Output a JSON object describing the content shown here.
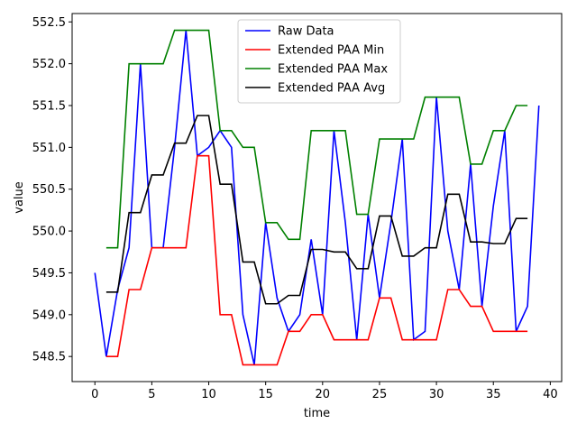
{
  "chart_data": {
    "type": "line",
    "xlabel": "time",
    "ylabel": "value",
    "xlim": [
      -2,
      41
    ],
    "ylim": [
      548.2,
      552.6
    ],
    "xticks": [
      0,
      5,
      10,
      15,
      20,
      25,
      30,
      35,
      40
    ],
    "yticks": [
      548.5,
      549.0,
      549.5,
      550.0,
      550.5,
      551.0,
      551.5,
      552.0,
      552.5
    ],
    "ytick_labels": [
      "548.5",
      "549.0",
      "549.5",
      "550.0",
      "550.5",
      "551.0",
      "551.5",
      "552.0",
      "552.5"
    ],
    "legend_position": "top-center",
    "grid": false,
    "series": [
      {
        "name": "Raw Data",
        "color": "#0000ff",
        "x": [
          0,
          1,
          2,
          3,
          4,
          5,
          6,
          7,
          8,
          9,
          10,
          11,
          12,
          13,
          14,
          15,
          16,
          17,
          18,
          19,
          20,
          21,
          22,
          23,
          24,
          25,
          26,
          27,
          28,
          29,
          30,
          31,
          32,
          33,
          34,
          35,
          36,
          37,
          38,
          39
        ],
        "y": [
          549.5,
          548.5,
          549.3,
          549.8,
          552.0,
          549.8,
          549.8,
          551.0,
          552.4,
          550.9,
          551.0,
          551.2,
          551.0,
          549.0,
          548.4,
          550.1,
          549.2,
          548.8,
          549.0,
          549.9,
          549.0,
          551.2,
          550.1,
          548.7,
          550.2,
          549.2,
          550.1,
          551.1,
          548.7,
          548.8,
          551.6,
          550.0,
          549.3,
          550.8,
          549.1,
          550.3,
          551.2,
          548.8,
          549.1,
          551.5
        ]
      },
      {
        "name": "Extended PAA Min",
        "color": "#ff0000",
        "x": [
          1,
          2,
          3,
          4,
          5,
          6,
          7,
          8,
          9,
          10,
          11,
          12,
          13,
          14,
          15,
          16,
          17,
          18,
          19,
          20,
          21,
          22,
          23,
          24,
          25,
          26,
          27,
          28,
          29,
          30,
          31,
          32,
          33,
          34,
          35,
          36,
          37,
          38
        ],
        "y": [
          548.5,
          548.5,
          549.3,
          549.3,
          549.8,
          549.8,
          549.8,
          549.8,
          550.9,
          550.9,
          549.0,
          549.0,
          548.4,
          548.4,
          548.4,
          548.4,
          548.8,
          548.8,
          549.0,
          549.0,
          548.7,
          548.7,
          548.7,
          548.7,
          549.2,
          549.2,
          548.7,
          548.7,
          548.7,
          548.7,
          549.3,
          549.3,
          549.1,
          549.1,
          548.8,
          548.8,
          548.8,
          548.8
        ]
      },
      {
        "name": "Extended PAA Max",
        "color": "#008000",
        "x": [
          1,
          2,
          3,
          4,
          5,
          6,
          7,
          8,
          9,
          10,
          11,
          12,
          13,
          14,
          15,
          16,
          17,
          18,
          19,
          20,
          21,
          22,
          23,
          24,
          25,
          26,
          27,
          28,
          29,
          30,
          31,
          32,
          33,
          34,
          35,
          36,
          37,
          38
        ],
        "y": [
          549.8,
          549.8,
          552.0,
          552.0,
          552.0,
          552.0,
          552.4,
          552.4,
          552.4,
          552.4,
          551.2,
          551.2,
          551.0,
          551.0,
          550.1,
          550.1,
          549.9,
          549.9,
          551.2,
          551.2,
          551.2,
          551.2,
          550.2,
          550.2,
          551.1,
          551.1,
          551.1,
          551.1,
          551.6,
          551.6,
          551.6,
          551.6,
          550.8,
          550.8,
          551.2,
          551.2,
          551.5,
          551.5
        ]
      },
      {
        "name": "Extended PAA Avg",
        "color": "#000000",
        "x": [
          1,
          2,
          3,
          4,
          5,
          6,
          7,
          8,
          9,
          10,
          11,
          12,
          13,
          14,
          15,
          16,
          17,
          18,
          19,
          20,
          21,
          22,
          23,
          24,
          25,
          26,
          27,
          28,
          29,
          30,
          31,
          32,
          33,
          34,
          35,
          36,
          37,
          38
        ],
        "y": [
          549.27,
          549.27,
          550.22,
          550.22,
          550.67,
          550.67,
          551.05,
          551.05,
          551.38,
          551.38,
          550.56,
          550.56,
          549.63,
          549.63,
          549.13,
          549.13,
          549.23,
          549.23,
          549.78,
          549.78,
          549.75,
          549.75,
          549.55,
          549.55,
          550.18,
          550.18,
          549.7,
          549.7,
          549.8,
          549.8,
          550.44,
          550.44,
          549.87,
          549.87,
          549.85,
          549.85,
          550.15,
          550.15
        ]
      }
    ]
  }
}
